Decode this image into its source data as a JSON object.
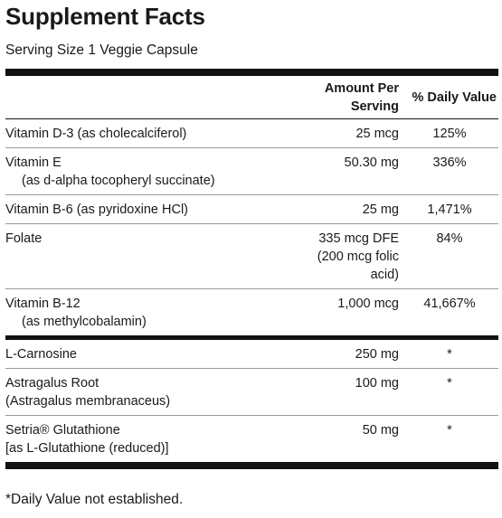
{
  "title": "Supplement Facts",
  "serving": "Serving Size 1 Veggie Capsule",
  "header": {
    "amount_line1": "Amount Per",
    "amount_line2": "Serving",
    "daily_value": "% Daily Value"
  },
  "vitamins": [
    {
      "name": "Vitamin D-3 (as cholecalciferol)",
      "sub": "",
      "amount": [
        "25 mcg"
      ],
      "dv": "125%"
    },
    {
      "name": "Vitamin E",
      "sub": "(as d-alpha tocopheryl succinate)",
      "amount": [
        "50.30 mg"
      ],
      "dv": "336%"
    },
    {
      "name": "Vitamin B-6 (as pyridoxine HCl)",
      "sub": "",
      "amount": [
        "25 mg"
      ],
      "dv": "1,471%"
    },
    {
      "name": "Folate",
      "sub": "",
      "amount": [
        "335 mcg DFE",
        "(200 mcg folic",
        "acid)"
      ],
      "dv": "84%"
    },
    {
      "name": "Vitamin B-12",
      "sub": "(as methylcobalamin)",
      "amount": [
        "1,000 mcg"
      ],
      "dv": "41,667%"
    }
  ],
  "others": [
    {
      "name": "L-Carnosine",
      "sub": "",
      "amount": [
        "250 mg"
      ],
      "dv": "*"
    },
    {
      "name": "Astragalus Root",
      "sub": "(Astragalus membranaceus)",
      "amount": [
        "100 mg"
      ],
      "dv": "*"
    },
    {
      "name": "Setria® Glutathione",
      "sub": "[as L-Glutathione (reduced)]",
      "amount": [
        "50 mg"
      ],
      "dv": "*"
    }
  ],
  "footnote": "*Daily Value not established."
}
